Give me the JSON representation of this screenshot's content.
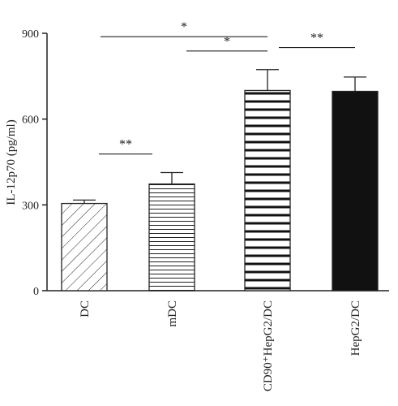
{
  "chart_data": {
    "type": "bar",
    "ylabel": "IL-12p70 (pg/ml)",
    "ylim": [
      0,
      900
    ],
    "yticks": [
      0,
      300,
      600,
      900
    ],
    "grid": false,
    "categories": [
      "DC",
      "mDC",
      "CD90⁺HepG2/DC",
      "HepG2/DC"
    ],
    "values": [
      305,
      373,
      700,
      697
    ],
    "errors": [
      12,
      40,
      73,
      50
    ],
    "fills": [
      "diagonal-hatch",
      "thin-horizontal-lines",
      "thick-horizontal-lines",
      "solid-black"
    ],
    "significance": [
      {
        "from": 0,
        "to": 2,
        "label": "*",
        "y": 888
      },
      {
        "from": 1,
        "to": 2,
        "label": "*",
        "y": 838
      },
      {
        "from": 2,
        "to": 3,
        "label": "**",
        "y": 850
      },
      {
        "from": 0,
        "to": 1,
        "label": "**",
        "y": 478
      }
    ]
  }
}
